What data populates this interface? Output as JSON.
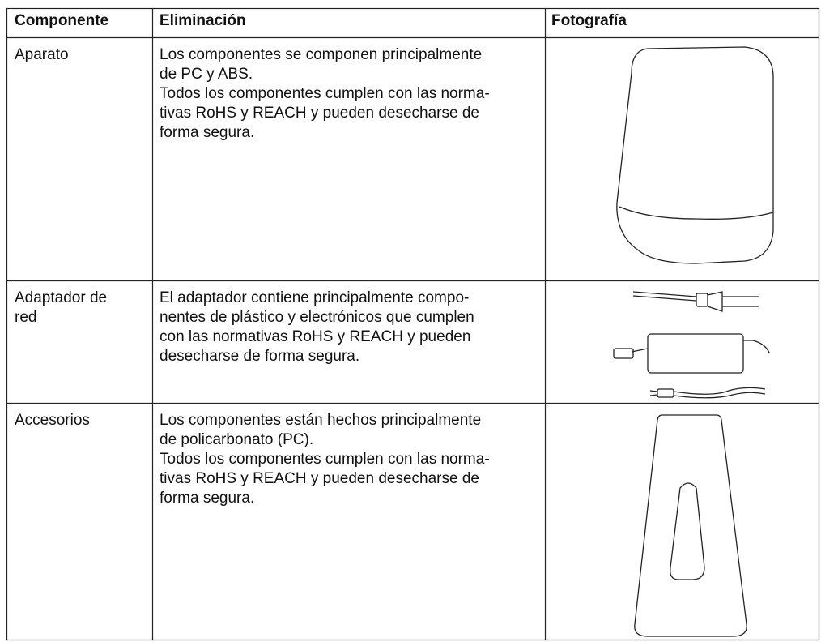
{
  "table": {
    "header": [
      "Componente",
      "Eliminación",
      "Fotografía"
    ],
    "rows": [
      {
        "component": [
          "Aparato"
        ],
        "description": [
          "Los componentes se componen principalmente",
          "de PC y ABS.",
          "Todos los componentes cumplen con las norma-",
          "tivas RoHS y REACH y pueden desecharse de",
          "forma segura."
        ]
      },
      {
        "component": [
          "Adaptador de",
          "red"
        ],
        "description": [
          "El adaptador contiene principalmente compo-",
          "nentes de plástico y electrónicos que cumplen",
          "con las normativas RoHS y REACH y pueden",
          "desecharse de forma segura."
        ]
      },
      {
        "component": [
          "Accesorios"
        ],
        "description": [
          "Los componentes están hechos principalmente",
          "de policarbonato (PC).",
          "Todos los componentes cumplen con las norma-",
          "tivas RoHS y REACH y pueden desecharse de",
          "forma segura."
        ]
      }
    ]
  }
}
